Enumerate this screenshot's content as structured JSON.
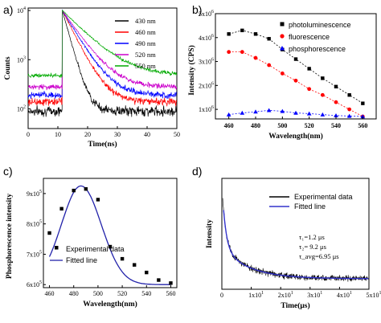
{
  "chart_data": [
    {
      "panel": "a)",
      "type": "line",
      "xlabel": "Time(ns)",
      "ylabel": "Counts",
      "xlim": [
        0,
        50
      ],
      "ylim_log10": [
        1.6,
        4.05
      ],
      "x_ticks": [
        "0",
        "10",
        "20",
        "30",
        "40",
        "50"
      ],
      "y_ticks": [
        "10",
        "10",
        "10"
      ],
      "y_tick_exps": [
        "2",
        "3",
        "4"
      ],
      "log_y": true,
      "series": [
        {
          "name": "430 nm",
          "color": "#000000",
          "baseline": 90,
          "tau": 2.0
        },
        {
          "name": "460 nm",
          "color": "#ff0000",
          "baseline": 140,
          "tau": 3.6
        },
        {
          "name": "490 nm",
          "color": "#0000ff",
          "baseline": 190,
          "tau": 4.3
        },
        {
          "name": "520 nm",
          "color": "#cc00cc",
          "baseline": 280,
          "tau": 5.0
        },
        {
          "name": "550 nm",
          "color": "#00aa00",
          "baseline": 480,
          "tau": 7.0
        }
      ],
      "rise_time_ns": 11.5,
      "peak_counts": 10000
    },
    {
      "panel": "b)",
      "type": "line",
      "xlabel": "Wavelength(nm)",
      "ylabel": "Intensity (CPS)",
      "xlim": [
        450,
        570
      ],
      "ylim": [
        600000,
        5000000
      ],
      "x_ticks": [
        "460",
        "480",
        "500",
        "520",
        "540",
        "560"
      ],
      "y_tick_values": [
        1000000,
        2000000,
        3000000,
        4000000,
        5000000
      ],
      "y_tick_mantissas": [
        "1x10",
        "2x10",
        "3x10",
        "4x10",
        "5x10"
      ],
      "y_tick_exp": "6",
      "x": [
        460,
        470,
        480,
        490,
        500,
        510,
        520,
        530,
        540,
        550,
        560
      ],
      "series": [
        {
          "name": "photoluminescence",
          "color": "#000000",
          "marker": "square",
          "values": [
            4150000,
            4300000,
            4150000,
            3950000,
            3500000,
            3100000,
            2700000,
            2300000,
            1950000,
            1600000,
            1250000
          ]
        },
        {
          "name": "fluorescence",
          "color": "#ff0000",
          "marker": "circle",
          "values": [
            3400000,
            3400000,
            3150000,
            2850000,
            2500000,
            2200000,
            1850000,
            1600000,
            1300000,
            1000000,
            700000
          ]
        },
        {
          "name": "phosphorescence",
          "color": "#0000ff",
          "marker": "triangle",
          "values": [
            780000,
            850000,
            900000,
            960000,
            920000,
            850000,
            820000,
            780000,
            740000,
            720000,
            700000
          ]
        }
      ]
    },
    {
      "panel": "c)",
      "type": "scatter",
      "xlabel": "Wavelength(nm)",
      "ylabel": "Phosphorescence intensity",
      "xlim": [
        455,
        565
      ],
      "ylim": [
        590000,
        950000
      ],
      "x_ticks": [
        "460",
        "480",
        "500",
        "520",
        "540",
        "560"
      ],
      "y_tick_values": [
        600000,
        700000,
        800000,
        900000
      ],
      "y_tick_mantissas": [
        "6x10",
        "7x10",
        "8x10",
        "9x10"
      ],
      "y_tick_exp": "5",
      "points": {
        "name": "Experimental data",
        "x": [
          460,
          470,
          480,
          490,
          500,
          510,
          520,
          530,
          540,
          550,
          560
        ],
        "y": [
          770000,
          850000,
          910000,
          915000,
          880000,
          725000,
          685000,
          665000,
          640000,
          615000,
          605000
        ]
      },
      "fit": {
        "name": "Fitted line",
        "color": "#2222aa",
        "peak_x": 486,
        "peak_y": 925000,
        "sigma": 16,
        "base": 600000
      }
    },
    {
      "panel": "d)",
      "type": "line",
      "xlabel": "Time(μs)",
      "ylabel": "Intensity",
      "xlim": [
        0,
        50
      ],
      "x_tick_values": [
        0,
        10,
        20,
        30,
        40,
        50
      ],
      "x_tick_labels": [
        "0",
        "1x10",
        "2x10",
        "3x10",
        "4x10",
        "5x10"
      ],
      "x_tick_exp": "1",
      "series": [
        {
          "name": "Experimental data",
          "color": "#000000"
        },
        {
          "name": "Fitted line",
          "color": "#3333cc"
        }
      ],
      "annotations": [
        "τ₁=1.2 μs",
        "τ₂= 9.2 μs",
        "τ_avg=6.95 μs"
      ],
      "tau1": 1.2,
      "tau2": 9.2,
      "tau_avg": 6.95
    }
  ]
}
